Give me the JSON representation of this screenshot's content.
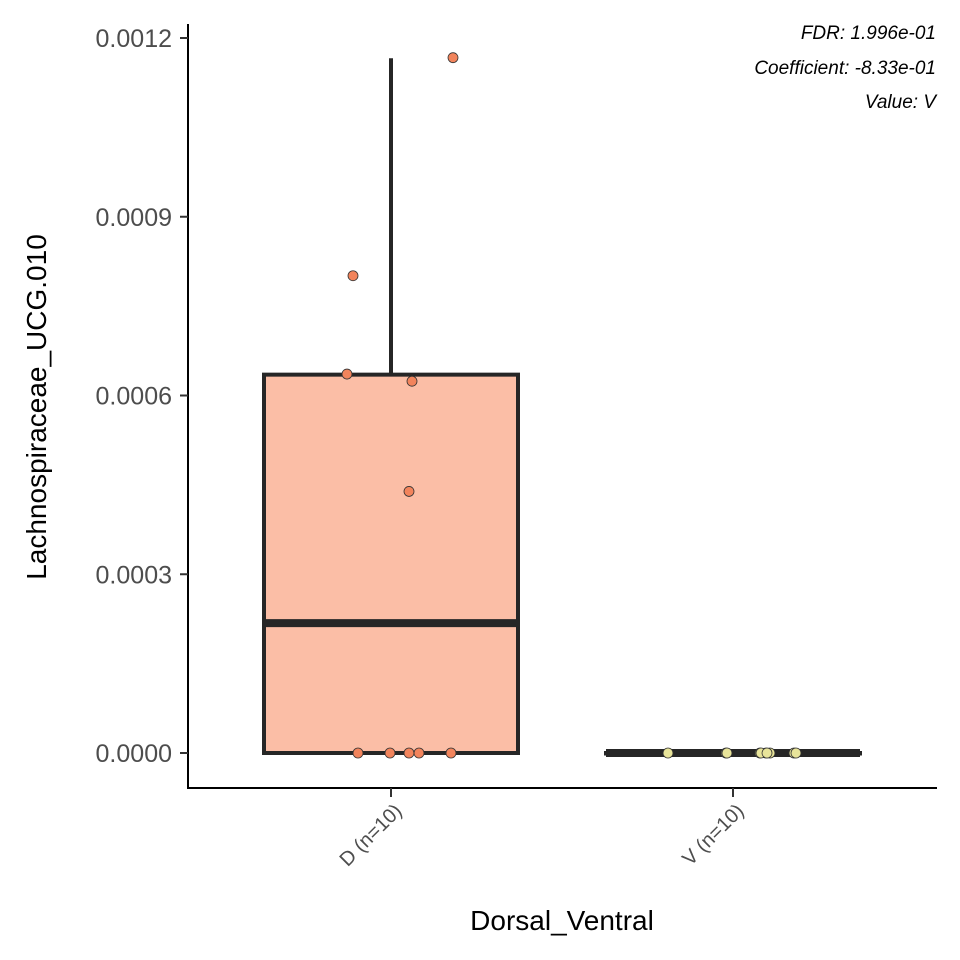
{
  "chart_data": {
    "type": "box",
    "xlabel": "Dorsal_Ventral",
    "ylabel": "Lachnospiraceae_UCG.010",
    "ylim": [
      -6e-05,
      0.00122
    ],
    "yticks": [
      "0.0000",
      "0.0003",
      "0.0006",
      "0.0009",
      "0.0012"
    ],
    "ytick_values": [
      0,
      0.0003,
      0.0006,
      0.0009,
      0.0012
    ],
    "grid": false,
    "legend": "none",
    "annotations": [
      "FDR: 1.996e-01",
      "Coefficient: -8.33e-01",
      "Value: V"
    ],
    "categories": [
      "D (n=10)",
      "V (n=10)"
    ],
    "boxes": [
      {
        "category": "D (n=10)",
        "min": 0,
        "q1": 0,
        "median": 0.000218,
        "q3": 0.000635,
        "max": 0.001166,
        "fill": "#fbbea6",
        "point_color": "#f2845c",
        "points": [
          0.001167,
          0.000801,
          0.000636,
          0.000624,
          0.000439,
          0,
          0,
          0,
          0,
          0
        ]
      },
      {
        "category": "V (n=10)",
        "min": 0,
        "q1": 0,
        "median": 0,
        "q3": 0,
        "max": 0,
        "fill": "#f6f3b0",
        "point_color": "#e8e49a",
        "points": [
          0,
          0,
          0,
          0,
          0,
          0,
          0,
          0,
          0,
          0
        ]
      }
    ]
  }
}
